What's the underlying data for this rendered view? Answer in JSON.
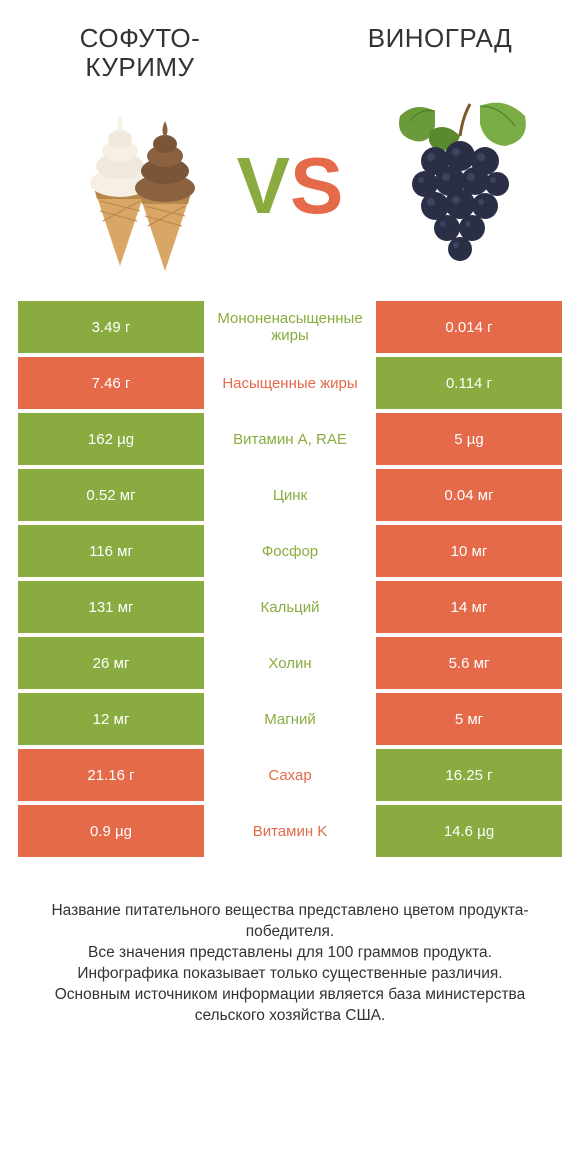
{
  "titles": {
    "left": "СОФУТО-КУРИМУ",
    "right": "ВИНОГРАД"
  },
  "vs": {
    "v": "V",
    "s": "S"
  },
  "colors": {
    "green": "#8aab3f",
    "orange": "#e46a4a",
    "leaf": "#6a9a3a",
    "grape_dark": "#2a2f45",
    "grape_light": "#4a5272",
    "cone": "#d9a666",
    "cone_dark": "#b8874a",
    "cream_white": "#f5efe4",
    "cream_choc": "#8a6242"
  },
  "rows": [
    {
      "label": "Мононенасыщенные жиры",
      "left": "3.49 г",
      "right": "0.014 г",
      "winner": "left"
    },
    {
      "label": "Насыщенные жиры",
      "left": "7.46 г",
      "right": "0.114 г",
      "winner": "right"
    },
    {
      "label": "Витамин A, RAE",
      "left": "162 µg",
      "right": "5 µg",
      "winner": "left"
    },
    {
      "label": "Цинк",
      "left": "0.52 мг",
      "right": "0.04 мг",
      "winner": "left"
    },
    {
      "label": "Фосфор",
      "left": "116 мг",
      "right": "10 мг",
      "winner": "left"
    },
    {
      "label": "Кальций",
      "left": "131 мг",
      "right": "14 мг",
      "winner": "left"
    },
    {
      "label": "Холин",
      "left": "26 мг",
      "right": "5.6 мг",
      "winner": "left"
    },
    {
      "label": "Магний",
      "left": "12 мг",
      "right": "5 мг",
      "winner": "left"
    },
    {
      "label": "Сахар",
      "left": "21.16 г",
      "right": "16.25 г",
      "winner": "right"
    },
    {
      "label": "Витамин K",
      "left": "0.9 µg",
      "right": "14.6 µg",
      "winner": "right"
    }
  ],
  "footer": "Название питательного вещества представлено цветом продукта-победителя.\nВсе значения представлены для 100 граммов продукта.\nИнфографика показывает только существенные различия.\nОсновным источником информации является база министерства сельского хозяйства США."
}
